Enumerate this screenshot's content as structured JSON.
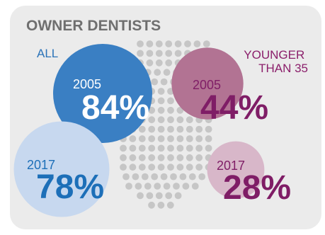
{
  "chart_data": {
    "type": "bubble",
    "title": "OWNER DENTISTS",
    "series": [
      {
        "name": "ALL",
        "color": "#3b82c4",
        "points": [
          {
            "year": "2005",
            "value": 84,
            "label": "84%",
            "color": "#3a7fc3",
            "text_color": "#ffffff"
          },
          {
            "year": "2017",
            "value": 78,
            "label": "78%",
            "color": "#c7d8ef",
            "text_color": "#1d6fb8"
          }
        ]
      },
      {
        "name": "YOUNGER THAN 35",
        "color": "#8b1f6b",
        "points": [
          {
            "year": "2005",
            "value": 44,
            "label": "44%",
            "color": "#b27393",
            "text_color": "#7f1d66"
          },
          {
            "year": "2017",
            "value": 28,
            "label": "28%",
            "color": "#d8b7c9",
            "text_color": "#7f1d66"
          }
        ]
      }
    ]
  }
}
